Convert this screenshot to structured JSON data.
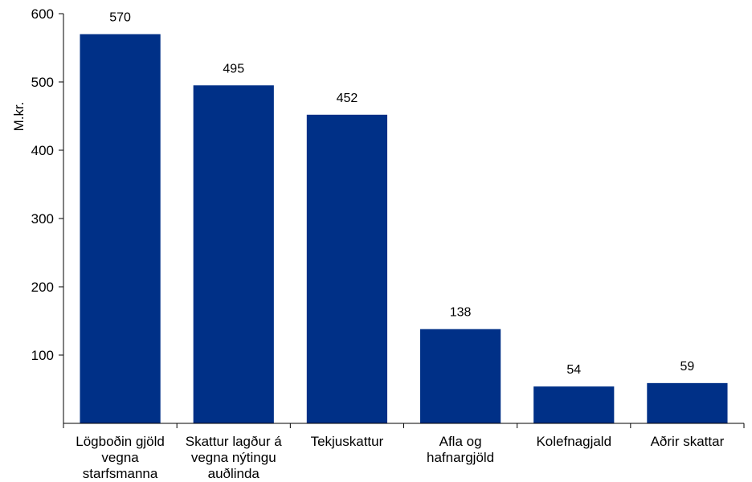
{
  "chart_data": {
    "type": "bar",
    "categories": [
      [
        "Lögboðin gjöld",
        "vegna",
        "starfsmanna"
      ],
      [
        "Skattur lagður á",
        "vegna nýtingu",
        "auðlinda"
      ],
      [
        "Tekjuskattur"
      ],
      [
        "Afla og",
        "hafnargjöld"
      ],
      [
        "Kolefnagjald"
      ],
      [
        "Aðrir skattar"
      ]
    ],
    "values": [
      570,
      495,
      452,
      138,
      54,
      59
    ],
    "data_labels": [
      "570",
      "495",
      "452",
      "138",
      "54",
      "59"
    ],
    "title": "",
    "xlabel": "",
    "ylabel": "M.kr.",
    "ylim": [
      0,
      600
    ],
    "yticks": [
      100,
      200,
      300,
      400,
      500,
      600
    ],
    "ytick_labels": [
      "100",
      "200",
      "300",
      "400",
      "500",
      "600"
    ],
    "bar_color": "#003087",
    "grid": false,
    "legend": "none"
  }
}
